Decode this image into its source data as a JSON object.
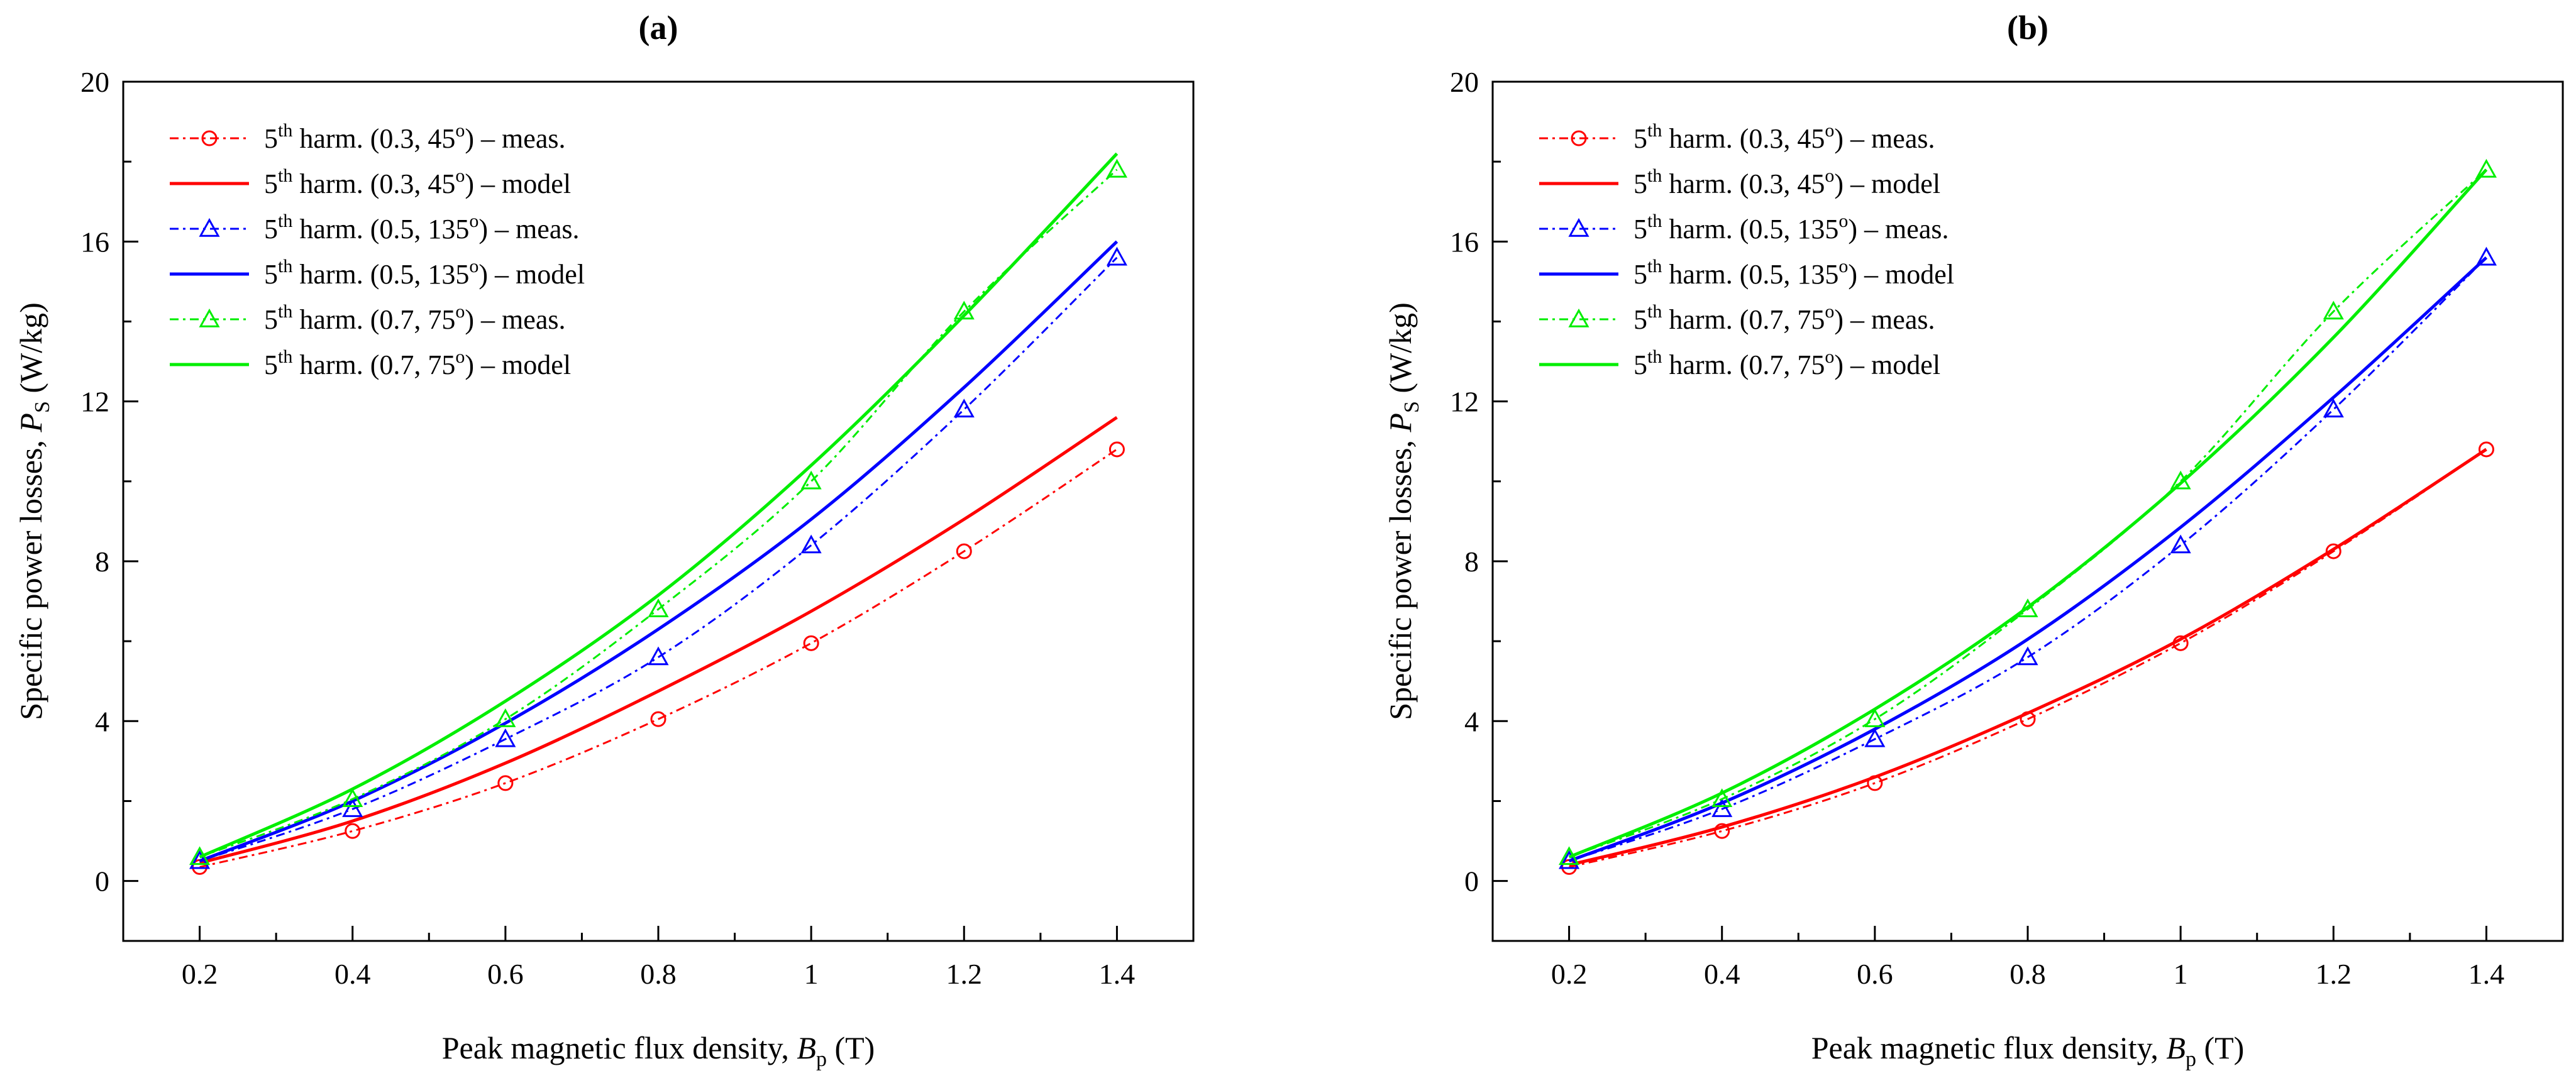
{
  "chart_data": [
    {
      "type": "line",
      "panel_label": "(a)",
      "xlabel": {
        "prefix": "Peak magnetic flux density, ",
        "var": "B",
        "sub": "p",
        "suffix": " (T)"
      },
      "ylabel": {
        "prefix": "Specific power losses, ",
        "var": "P",
        "sub": "S",
        "suffix": " (W/kg)"
      },
      "xlim": [
        0.1,
        1.5
      ],
      "ylim": [
        -1.5,
        20
      ],
      "xticks": [
        0.2,
        0.4,
        0.6,
        0.8,
        1.0,
        1.2,
        1.4
      ],
      "xtick_labels": [
        "0.2",
        "0.4",
        "0.6",
        "0.8",
        "1",
        "1.2",
        "1.4"
      ],
      "yticks": [
        0,
        4,
        8,
        12,
        16,
        20
      ],
      "ytick_labels": [
        "0",
        "4",
        "8",
        "12",
        "16",
        "20"
      ],
      "legend_position": "top-left",
      "x": [
        0.2,
        0.4,
        0.6,
        0.8,
        1.0,
        1.2,
        1.4
      ],
      "series": [
        {
          "name": "5th harm. (0.3, 45o) – meas.",
          "legend": {
            "pre": "5",
            "sup1": "th",
            "mid": " harm. (0.3, 45",
            "sup2": "o",
            "post": ") – meas."
          },
          "color": "#ff0000",
          "style": "dashdot",
          "marker": "circle",
          "values": [
            0.35,
            1.25,
            2.45,
            4.05,
            5.95,
            8.25,
            10.8
          ]
        },
        {
          "name": "5th harm. (0.3, 45o) – model",
          "legend": {
            "pre": "5",
            "sup1": "th",
            "mid": " harm. (0.3, 45",
            "sup2": "o",
            "post": ") – model"
          },
          "color": "#ff0000",
          "style": "solid",
          "marker": "none",
          "values": [
            0.45,
            1.5,
            2.95,
            4.75,
            6.75,
            9.05,
            11.6
          ]
        },
        {
          "name": "5th harm. (0.5, 135o) – meas.",
          "legend": {
            "pre": "5",
            "sup1": "th",
            "mid": " harm. (0.5, 135",
            "sup2": "o",
            "post": ") – meas."
          },
          "color": "#0000ff",
          "style": "dashdot",
          "marker": "triangle",
          "values": [
            0.5,
            1.8,
            3.55,
            5.6,
            8.4,
            11.8,
            15.6
          ]
        },
        {
          "name": "5th harm. (0.5, 135o) – model",
          "legend": {
            "pre": "5",
            "sup1": "th",
            "mid": " harm. (0.5, 135",
            "sup2": "o",
            "post": ") – model"
          },
          "color": "#0000ff",
          "style": "solid",
          "marker": "none",
          "values": [
            0.5,
            2.0,
            3.95,
            6.3,
            9.05,
            12.35,
            16.0
          ]
        },
        {
          "name": "5th harm. (0.7, 75o) – meas.",
          "legend": {
            "pre": "5",
            "sup1": "th",
            "mid": " harm. (0.7, 75",
            "sup2": "o",
            "post": ") – meas."
          },
          "color": "#00ee00",
          "style": "dashdot",
          "marker": "triangle",
          "values": [
            0.6,
            2.05,
            4.05,
            6.8,
            10.0,
            14.25,
            17.8
          ]
        },
        {
          "name": "5th harm. (0.7, 75o) – model",
          "legend": {
            "pre": "5",
            "sup1": "th",
            "mid": " harm. (0.7, 75",
            "sup2": "o",
            "post": ") – model"
          },
          "color": "#00ee00",
          "style": "solid",
          "marker": "none",
          "values": [
            0.6,
            2.3,
            4.5,
            7.15,
            10.4,
            14.15,
            18.2
          ]
        }
      ]
    },
    {
      "type": "line",
      "panel_label": "(b)",
      "xlabel": {
        "prefix": "Peak magnetic flux density, ",
        "var": "B",
        "sub": "p",
        "suffix": " (T)"
      },
      "ylabel": {
        "prefix": "Specific power losses, ",
        "var": "P",
        "sub": "S",
        "suffix": " (W/kg)"
      },
      "xlim": [
        0.1,
        1.5
      ],
      "ylim": [
        -1.5,
        20
      ],
      "xticks": [
        0.2,
        0.4,
        0.6,
        0.8,
        1.0,
        1.2,
        1.4
      ],
      "xtick_labels": [
        "0.2",
        "0.4",
        "0.6",
        "0.8",
        "1",
        "1.2",
        "1.4"
      ],
      "yticks": [
        0,
        4,
        8,
        12,
        16,
        20
      ],
      "ytick_labels": [
        "0",
        "4",
        "8",
        "12",
        "16",
        "20"
      ],
      "legend_position": "top-left",
      "x": [
        0.2,
        0.4,
        0.6,
        0.8,
        1.0,
        1.2,
        1.4
      ],
      "series": [
        {
          "name": "5th harm. (0.3, 45o) – meas.",
          "legend": {
            "pre": "5",
            "sup1": "th",
            "mid": " harm. (0.3, 45",
            "sup2": "o",
            "post": ") – meas."
          },
          "color": "#ff0000",
          "style": "dashdot",
          "marker": "circle",
          "values": [
            0.35,
            1.25,
            2.45,
            4.05,
            5.95,
            8.25,
            10.8
          ]
        },
        {
          "name": "5th harm. (0.3, 45o) – model",
          "legend": {
            "pre": "5",
            "sup1": "th",
            "mid": " harm. (0.3, 45",
            "sup2": "o",
            "post": ") – model"
          },
          "color": "#ff0000",
          "style": "solid",
          "marker": "none",
          "values": [
            0.4,
            1.35,
            2.6,
            4.2,
            6.05,
            8.3,
            10.8
          ]
        },
        {
          "name": "5th harm. (0.5, 135o) – meas.",
          "legend": {
            "pre": "5",
            "sup1": "th",
            "mid": " harm. (0.5, 135",
            "sup2": "o",
            "post": ") – meas."
          },
          "color": "#0000ff",
          "style": "dashdot",
          "marker": "triangle",
          "values": [
            0.5,
            1.8,
            3.55,
            5.6,
            8.4,
            11.8,
            15.6
          ]
        },
        {
          "name": "5th harm. (0.5, 135o) – model",
          "legend": {
            "pre": "5",
            "sup1": "th",
            "mid": " harm. (0.5, 135",
            "sup2": "o",
            "post": ") – model"
          },
          "color": "#0000ff",
          "style": "solid",
          "marker": "none",
          "values": [
            0.5,
            1.95,
            3.8,
            6.05,
            8.85,
            12.1,
            15.6
          ]
        },
        {
          "name": "5th harm. (0.7, 75o) – meas.",
          "legend": {
            "pre": "5",
            "sup1": "th",
            "mid": " harm. (0.7, 75",
            "sup2": "o",
            "post": ") – meas."
          },
          "color": "#00ee00",
          "style": "dashdot",
          "marker": "triangle",
          "values": [
            0.6,
            2.05,
            4.05,
            6.8,
            10.0,
            14.25,
            17.8
          ]
        },
        {
          "name": "5th harm. (0.7, 75o) – model",
          "legend": {
            "pre": "5",
            "sup1": "th",
            "mid": " harm. (0.7, 75",
            "sup2": "o",
            "post": ") – model"
          },
          "color": "#00ee00",
          "style": "solid",
          "marker": "none",
          "values": [
            0.6,
            2.2,
            4.3,
            6.85,
            9.95,
            13.6,
            17.8
          ]
        }
      ]
    }
  ]
}
